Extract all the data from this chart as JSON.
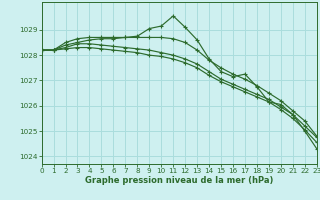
{
  "xlabel": "Graphe pression niveau de la mer (hPa)",
  "bg_color": "#cef0f0",
  "grid_color": "#aadddd",
  "line_color": "#2d6b2d",
  "ylim": [
    1023.7,
    1030.1
  ],
  "xlim": [
    0,
    23
  ],
  "yticks": [
    1024,
    1025,
    1026,
    1027,
    1028,
    1029
  ],
  "xticks": [
    0,
    1,
    2,
    3,
    4,
    5,
    6,
    7,
    8,
    9,
    10,
    11,
    12,
    13,
    14,
    15,
    16,
    17,
    18,
    19,
    20,
    21,
    22,
    23
  ],
  "series": [
    [
      1028.2,
      1028.2,
      1028.4,
      1028.5,
      1028.6,
      1028.65,
      1028.65,
      1028.7,
      1028.75,
      1029.05,
      1029.15,
      1029.55,
      1029.1,
      1028.6,
      1027.85,
      1027.35,
      1027.15,
      1027.25,
      1026.75,
      1026.15,
      1026.05,
      1025.65,
      1025.0,
      1024.3
    ],
    [
      1028.2,
      1028.2,
      1028.5,
      1028.65,
      1028.7,
      1028.7,
      1028.7,
      1028.7,
      1028.7,
      1028.7,
      1028.7,
      1028.65,
      1028.5,
      1028.2,
      1027.8,
      1027.5,
      1027.25,
      1027.05,
      1026.8,
      1026.5,
      1026.2,
      1025.8,
      1025.4,
      1024.8
    ],
    [
      1028.2,
      1028.2,
      1028.3,
      1028.45,
      1028.45,
      1028.4,
      1028.35,
      1028.3,
      1028.25,
      1028.2,
      1028.1,
      1028.0,
      1027.85,
      1027.65,
      1027.35,
      1027.05,
      1026.85,
      1026.65,
      1026.45,
      1026.25,
      1025.95,
      1025.65,
      1025.2,
      1024.75
    ],
    [
      1028.2,
      1028.2,
      1028.25,
      1028.3,
      1028.3,
      1028.25,
      1028.2,
      1028.15,
      1028.1,
      1028.0,
      1027.95,
      1027.85,
      1027.7,
      1027.5,
      1027.2,
      1026.95,
      1026.75,
      1026.55,
      1026.35,
      1026.15,
      1025.85,
      1025.5,
      1025.05,
      1024.55
    ]
  ]
}
